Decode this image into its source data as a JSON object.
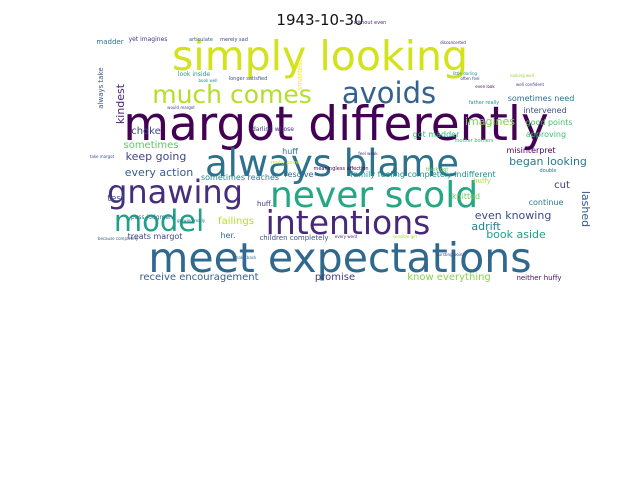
{
  "title": "1943-10-30",
  "words": [
    {
      "text": "margot differently",
      "weight": 1.0,
      "color": "#440154"
    },
    {
      "text": "meet expectations",
      "weight": 0.92,
      "color": "#31688e"
    },
    {
      "text": "simply looking",
      "weight": 0.86,
      "color": "#d2e21b"
    },
    {
      "text": "always blame",
      "weight": 0.8,
      "color": "#2c728e"
    },
    {
      "text": "never scold",
      "weight": 0.78,
      "color": "#26a784"
    },
    {
      "text": "gnawing",
      "weight": 0.7,
      "color": "#472d7b"
    },
    {
      "text": "intentions",
      "weight": 0.66,
      "color": "#482878"
    },
    {
      "text": "model",
      "weight": 0.6,
      "color": "#1fa088"
    },
    {
      "text": "avoids",
      "weight": 0.58,
      "color": "#33638d"
    },
    {
      "text": "much comes",
      "weight": 0.48,
      "color": "#b5de2b"
    },
    {
      "text": "every action",
      "weight": 0.2,
      "color": "#365c8d"
    },
    {
      "text": "keep going",
      "weight": 0.2,
      "color": "#404688"
    },
    {
      "text": "began looking",
      "weight": 0.2,
      "color": "#2a788e"
    },
    {
      "text": "even knowing",
      "weight": 0.2,
      "color": "#3e4a89"
    },
    {
      "text": "book aside",
      "weight": 0.2,
      "color": "#1f9e89"
    },
    {
      "text": "imagines",
      "weight": 0.19,
      "color": "#7ad151"
    },
    {
      "text": "receive encouragement",
      "weight": 0.18,
      "color": "#355f8d"
    },
    {
      "text": "know everything",
      "weight": 0.18,
      "color": "#86d549"
    },
    {
      "text": "promise",
      "weight": 0.18,
      "color": "#443a83"
    },
    {
      "text": "adrift",
      "weight": 0.18,
      "color": "#277f8e"
    },
    {
      "text": "lashed",
      "weight": 0.17,
      "color": "#38588c"
    },
    {
      "text": "kindest",
      "weight": 0.17,
      "color": "#482475"
    },
    {
      "text": "sometimes",
      "weight": 0.16,
      "color": "#5ec962"
    },
    {
      "text": "choke",
      "weight": 0.16,
      "color": "#3f4788"
    },
    {
      "text": "cut",
      "weight": 0.16,
      "color": "#46337e"
    },
    {
      "text": "failings",
      "weight": 0.16,
      "color": "#b8de29"
    },
    {
      "text": "test",
      "weight": 0.15,
      "color": "#3b528b"
    },
    {
      "text": "sometimes need",
      "weight": 0.14,
      "color": "#2d708e"
    },
    {
      "text": "intervened",
      "weight": 0.14,
      "color": "#3d4d8a"
    },
    {
      "text": "good points",
      "weight": 0.14,
      "color": "#44bf70"
    },
    {
      "text": "approving",
      "weight": 0.14,
      "color": "#3fbc73"
    },
    {
      "text": "misinterpret",
      "weight": 0.14,
      "color": "#440256"
    },
    {
      "text": "got madder",
      "weight": 0.14,
      "color": "#35b779"
    },
    {
      "text": "huff",
      "weight": 0.14,
      "color": "#2f6c8e"
    },
    {
      "text": "resolve",
      "weight": 0.14,
      "color": "#31688e"
    },
    {
      "text": "family feeling completely indifferent",
      "weight": 0.14,
      "color": "#21918c"
    },
    {
      "text": "continue",
      "weight": 0.13,
      "color": "#287c8e"
    },
    {
      "text": "knitted",
      "weight": 0.13,
      "color": "#6ccd5a"
    },
    {
      "text": "huffy",
      "weight": 0.12,
      "color": "#addc30"
    },
    {
      "text": "treats margot",
      "weight": 0.12,
      "color": "#414487"
    },
    {
      "text": "her.",
      "weight": 0.12,
      "color": "#2e6e8e"
    },
    {
      "text": "sometimes reaches",
      "weight": 0.12,
      "color": "#24868e"
    },
    {
      "text": "children completely",
      "weight": 0.1,
      "color": "#3b528b"
    },
    {
      "text": "neither huffy",
      "weight": 0.1,
      "color": "#471365"
    },
    {
      "text": "madder",
      "weight": 0.11,
      "color": "#2c738e"
    },
    {
      "text": "always take",
      "weight": 0.11,
      "color": "#39568c"
    },
    {
      "text": "smartest",
      "weight": 0.11,
      "color": "#fde725"
    },
    {
      "text": "huff.",
      "weight": 0.11,
      "color": "#46307e"
    },
    {
      "text": "yet imagines",
      "weight": 0.09,
      "color": "#453781"
    },
    {
      "text": "pass judgment",
      "weight": 0.08,
      "color": "#2c738e"
    },
    {
      "text": "darling whose",
      "weight": 0.09,
      "color": "#46327e"
    },
    {
      "text": "look inside",
      "weight": 0.08,
      "color": "#20a386"
    },
    {
      "text": "without even",
      "weight": 0.08,
      "color": "#472a7a"
    },
    {
      "text": "longer satisfied",
      "weight": 0.07,
      "color": "#3a548c"
    },
    {
      "text": "really point",
      "weight": 0.07,
      "color": "#d8e219"
    },
    {
      "text": "articulate",
      "weight": 0.07,
      "color": "#355e8d"
    },
    {
      "text": "merely sad",
      "weight": 0.06,
      "color": "#3e4989"
    },
    {
      "text": "father really",
      "weight": 0.06,
      "color": "#1f958b"
    },
    {
      "text": "meaningless affection",
      "weight": 0.06,
      "color": "#440154"
    },
    {
      "text": "think got",
      "weight": 0.06,
      "color": "#65cb5e"
    },
    {
      "text": "double",
      "weight": 0.06,
      "color": "#2a778e"
    },
    {
      "text": "mother bothers",
      "weight": 0.06,
      "color": "#35b779"
    },
    {
      "text": "would margot",
      "weight": 0.05,
      "color": "#433e85"
    },
    {
      "text": "choke back",
      "weight": 0.05,
      "color": "#31688e"
    },
    {
      "text": "bursting point",
      "weight": 0.05,
      "color": "#404688"
    },
    {
      "text": "take margot",
      "weight": 0.05,
      "color": "#3b528b"
    },
    {
      "text": "growing really",
      "weight": 0.05,
      "color": "#2d708e"
    },
    {
      "text": "feel weak",
      "weight": 0.05,
      "color": "#472c7a"
    },
    {
      "text": "every word",
      "weight": 0.05,
      "color": "#482677"
    },
    {
      "text": "sensible girl",
      "weight": 0.05,
      "color": "#a0da39"
    },
    {
      "text": "because completely",
      "weight": 0.05,
      "color": "#375a8c"
    },
    {
      "text": "little darling",
      "weight": 0.05,
      "color": "#20928c"
    },
    {
      "text": "even look",
      "weight": 0.05,
      "color": "#440154"
    },
    {
      "text": "well confident",
      "weight": 0.05,
      "color": "#404387"
    },
    {
      "text": "book well",
      "weight": 0.05,
      "color": "#238a8d"
    },
    {
      "text": "disconcerted",
      "weight": 0.05,
      "color": "#482173"
    },
    {
      "text": "often feel",
      "weight": 0.05,
      "color": "#3f4889"
    },
    {
      "text": "looking well",
      "weight": 0.05,
      "color": "#93d741"
    }
  ]
}
